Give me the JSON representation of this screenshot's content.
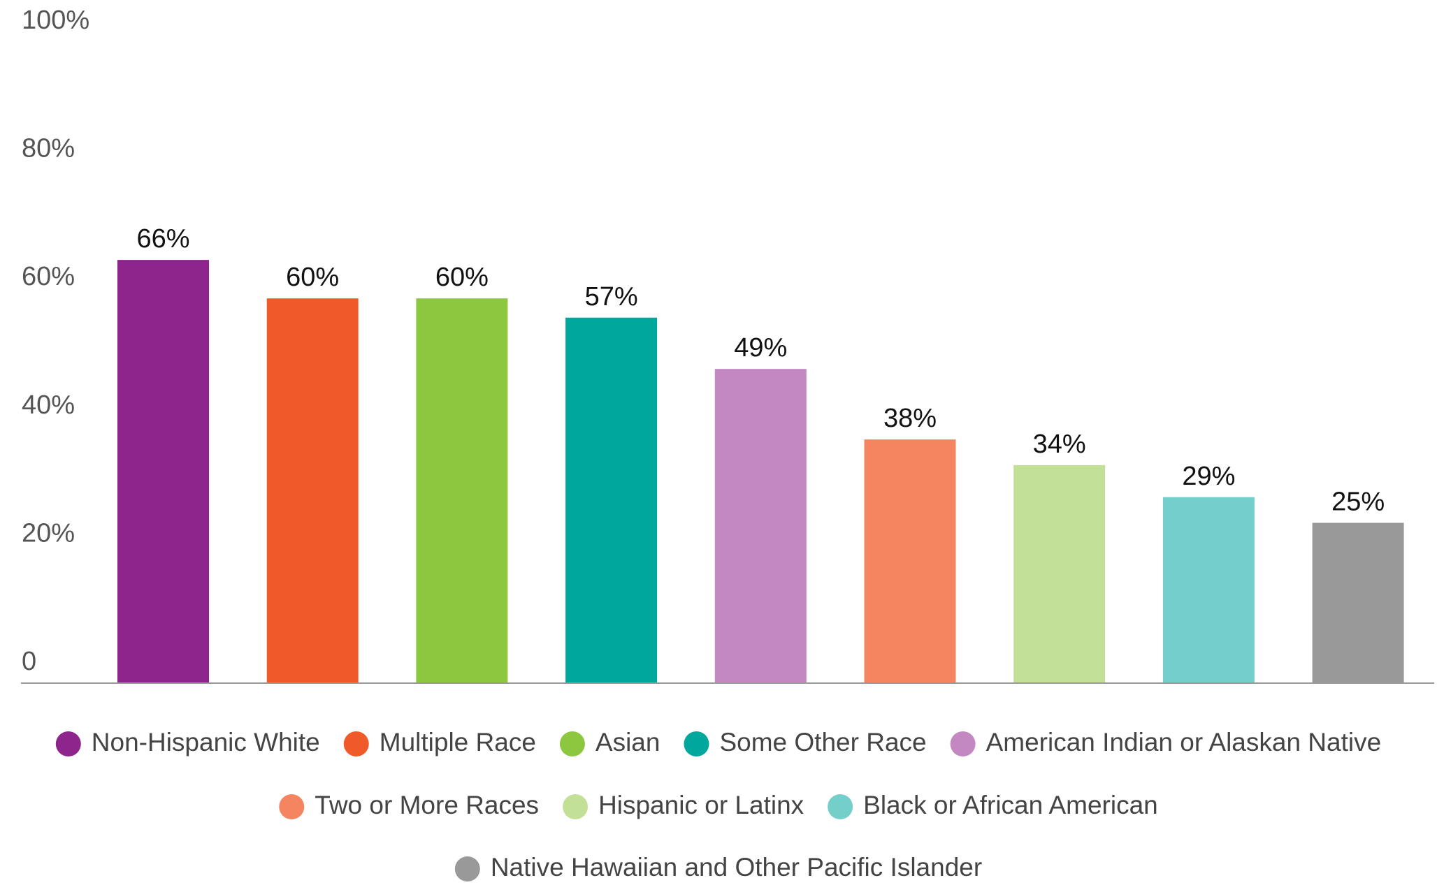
{
  "chart_data": {
    "type": "bar",
    "categories": [
      "Non-Hispanic White",
      "Multiple Race",
      "Asian",
      "Some Other Race",
      "American Indian or Alaskan Native",
      "Two or More Races",
      "Hispanic or Latinx",
      "Black or African American",
      "Native Hawaiian and Other Pacific Islander"
    ],
    "values": [
      66,
      60,
      60,
      57,
      49,
      38,
      34,
      29,
      25
    ],
    "value_labels": [
      "66%",
      "60%",
      "60%",
      "57%",
      "49%",
      "38%",
      "34%",
      "29%",
      "25%"
    ],
    "colors": [
      "#8e258d",
      "#ef5a28",
      "#8dc63f",
      "#00a79d",
      "#c387c1",
      "#f58461",
      "#c2e197",
      "#74cfca",
      "#999999"
    ],
    "ylim": [
      0,
      100
    ],
    "yticks": [
      0,
      {
        "value": 20,
        "label": "20%"
      },
      {
        "value": 40,
        "label": "40%"
      },
      {
        "value": 60,
        "label": "60%"
      },
      {
        "value": 80,
        "label": "80%"
      },
      {
        "value": 100,
        "label": "100%"
      }
    ],
    "grid": false,
    "legend": "bottom"
  }
}
